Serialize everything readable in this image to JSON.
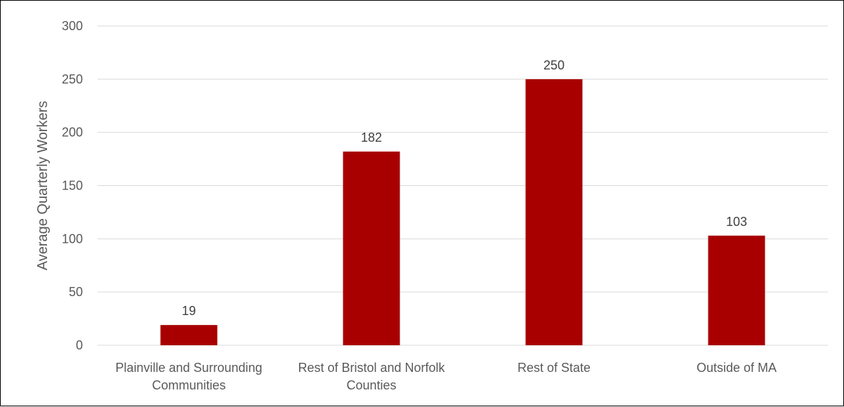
{
  "chart_data": {
    "type": "bar",
    "title": "",
    "xlabel": "",
    "ylabel": "Average Quarterly Workers",
    "ylim": [
      0,
      300
    ],
    "yticks": [
      0,
      50,
      100,
      150,
      200,
      250,
      300
    ],
    "grid": true,
    "legend": "none",
    "categories": [
      [
        "Plainville and Surrounding",
        "Communities"
      ],
      [
        "Rest of Bristol and Norfolk",
        "Counties"
      ],
      [
        "Rest of State"
      ],
      [
        "Outside of MA"
      ]
    ],
    "values": [
      19,
      182,
      250,
      103
    ],
    "data_labels": [
      "19",
      "182",
      "250",
      "103"
    ],
    "colors": {
      "bar": "#a80000",
      "grid": "#d9d9d9",
      "text": "#595959",
      "data_label": "#404040"
    }
  }
}
